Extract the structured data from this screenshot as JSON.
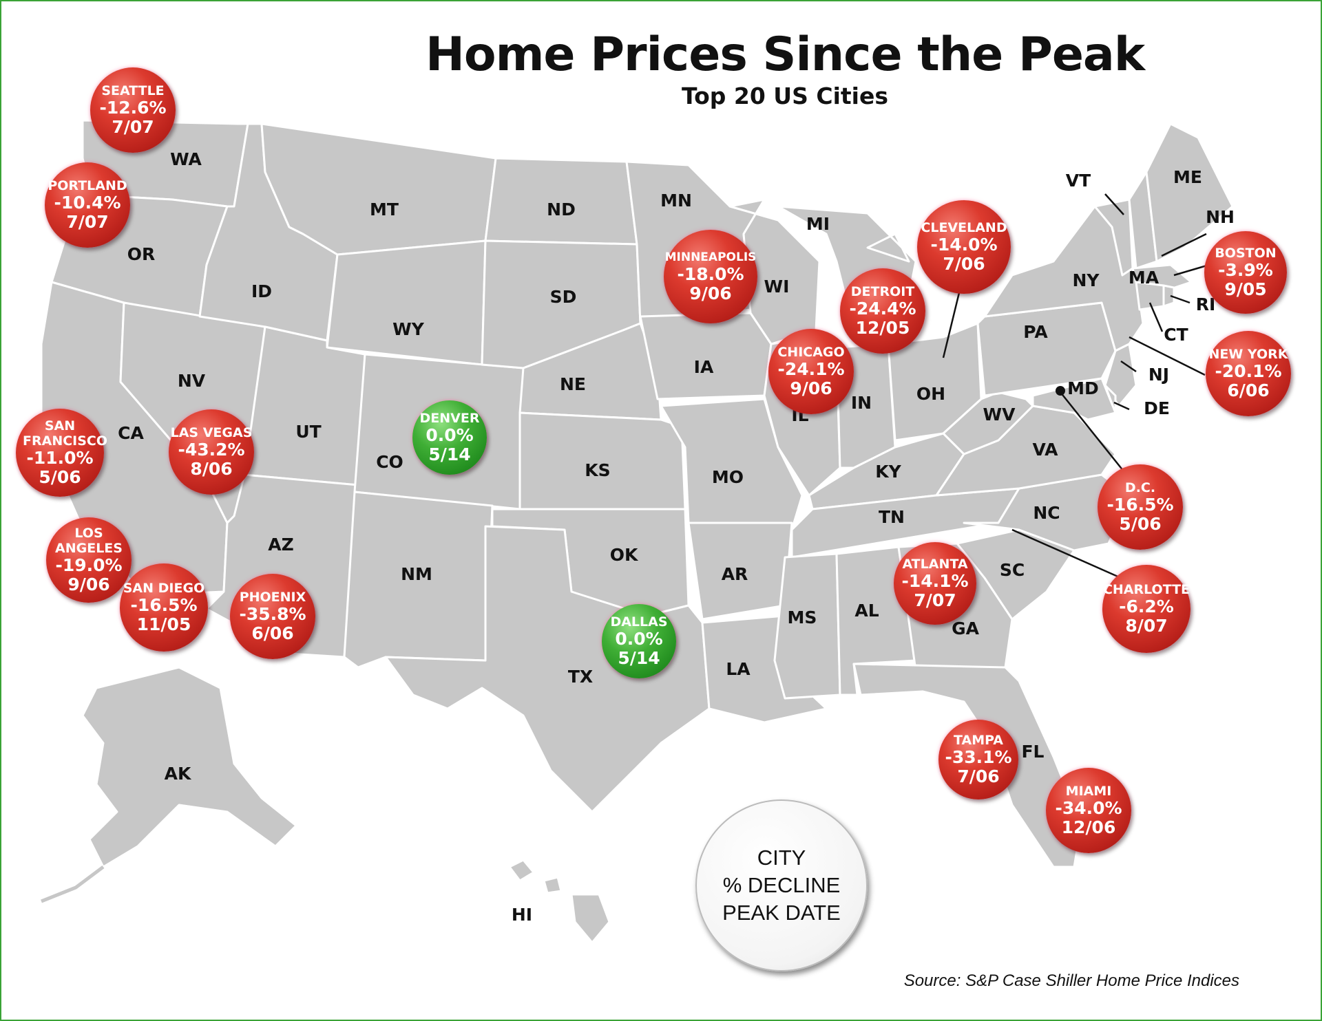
{
  "title": "Home Prices Since the Peak",
  "subtitle": "Top 20 US Cities",
  "source": "Source: S&P Case Shiller Home Price Indices",
  "legend": {
    "line1": "CITY",
    "line2": "% DECLINE",
    "line3": "PEAK DATE"
  },
  "colors": {
    "decline": "#c8231c",
    "no_decline": "#2e9a2a",
    "state_fill": "#c7c7c7",
    "state_border": "#ffffff"
  },
  "states": [
    "WA",
    "OR",
    "CA",
    "NV",
    "ID",
    "MT",
    "WY",
    "UT",
    "AZ",
    "CO",
    "NM",
    "ND",
    "SD",
    "NE",
    "KS",
    "OK",
    "TX",
    "MN",
    "IA",
    "MO",
    "AR",
    "LA",
    "WI",
    "IL",
    "MI",
    "IN",
    "OH",
    "KY",
    "TN",
    "MS",
    "AL",
    "GA",
    "FL",
    "SC",
    "NC",
    "VA",
    "WV",
    "PA",
    "NY",
    "VT",
    "NH",
    "ME",
    "MA",
    "RI",
    "CT",
    "NJ",
    "DE",
    "MD",
    "AK",
    "HI"
  ],
  "cities": [
    {
      "name": "SEATTLE",
      "decline": "-12.6%",
      "peak": "7/07"
    },
    {
      "name": "PORTLAND",
      "decline": "-10.4%",
      "peak": "7/07"
    },
    {
      "name": "SAN FRANCISCO",
      "decline": "-11.0%",
      "peak": "5/06"
    },
    {
      "name": "LOS ANGELES",
      "decline": "-19.0%",
      "peak": "9/06"
    },
    {
      "name": "SAN DIEGO",
      "decline": "-16.5%",
      "peak": "11/05"
    },
    {
      "name": "LAS VEGAS",
      "decline": "-43.2%",
      "peak": "8/06"
    },
    {
      "name": "PHOENIX",
      "decline": "-35.8%",
      "peak": "6/06"
    },
    {
      "name": "DENVER",
      "decline": "0.0%",
      "peak": "5/14"
    },
    {
      "name": "DALLAS",
      "decline": "0.0%",
      "peak": "5/14"
    },
    {
      "name": "MINNEAPOLIS",
      "decline": "-18.0%",
      "peak": "9/06"
    },
    {
      "name": "CHICAGO",
      "decline": "-24.1%",
      "peak": "9/06"
    },
    {
      "name": "DETROIT",
      "decline": "-24.4%",
      "peak": "12/05"
    },
    {
      "name": "CLEVELAND",
      "decline": "-14.0%",
      "peak": "7/06"
    },
    {
      "name": "BOSTON",
      "decline": "-3.9%",
      "peak": "9/05"
    },
    {
      "name": "NEW YORK",
      "decline": "-20.1%",
      "peak": "6/06"
    },
    {
      "name": "D.C.",
      "decline": "-16.5%",
      "peak": "5/06"
    },
    {
      "name": "CHARLOTTE",
      "decline": "-6.2%",
      "peak": "8/07"
    },
    {
      "name": "ATLANTA",
      "decline": "-14.1%",
      "peak": "7/07"
    },
    {
      "name": "TAMPA",
      "decline": "-33.1%",
      "peak": "7/06"
    },
    {
      "name": "MIAMI",
      "decline": "-34.0%",
      "peak": "12/06"
    }
  ]
}
